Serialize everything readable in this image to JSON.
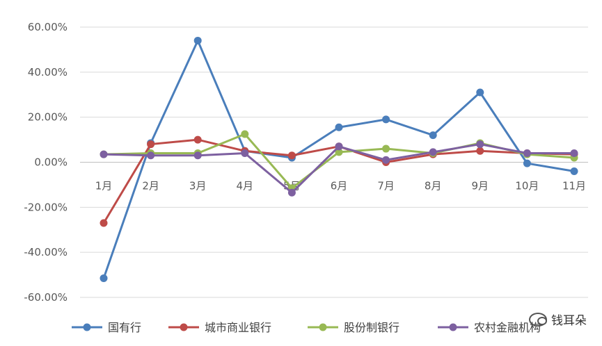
{
  "chart_data": {
    "type": "line",
    "title": "",
    "xlabel": "",
    "ylabel": "",
    "categories": [
      "1月",
      "2月",
      "3月",
      "4月",
      "5月",
      "6月",
      "7月",
      "8月",
      "9月",
      "10月",
      "11月"
    ],
    "ylim": [
      -60,
      60
    ],
    "ytick_labels": [
      "60.00%",
      "40.00%",
      "20.00%",
      "0.00%",
      "-20.00%",
      "-40.00%",
      "-60.00%"
    ],
    "ytick_values": [
      60,
      40,
      20,
      0,
      -20,
      -40,
      -60
    ],
    "grid": true,
    "legend_position": "bottom",
    "series": [
      {
        "name": "国有行",
        "color": "#4a7ebb",
        "values": [
          -51.5,
          8.5,
          54.0,
          5.0,
          2.0,
          15.5,
          19.0,
          12.0,
          31.0,
          -0.5,
          -4.0
        ]
      },
      {
        "name": "城市商业银行",
        "color": "#be4b48",
        "values": [
          -27.0,
          8.0,
          10.0,
          5.0,
          3.0,
          7.0,
          0.0,
          3.5,
          5.0,
          4.0,
          3.5
        ]
      },
      {
        "name": "股份制银行",
        "color": "#98b954",
        "values": [
          3.5,
          4.0,
          4.0,
          12.5,
          -11.5,
          4.5,
          6.0,
          4.0,
          8.5,
          3.5,
          2.0
        ]
      },
      {
        "name": "农村金融机构",
        "color": "#7d60a0",
        "values": [
          3.5,
          3.0,
          3.0,
          4.0,
          -13.5,
          7.0,
          1.0,
          4.5,
          8.0,
          4.0,
          4.0
        ]
      }
    ]
  },
  "watermark": {
    "text": "钱耳朵",
    "icon": "wechat-icon"
  }
}
